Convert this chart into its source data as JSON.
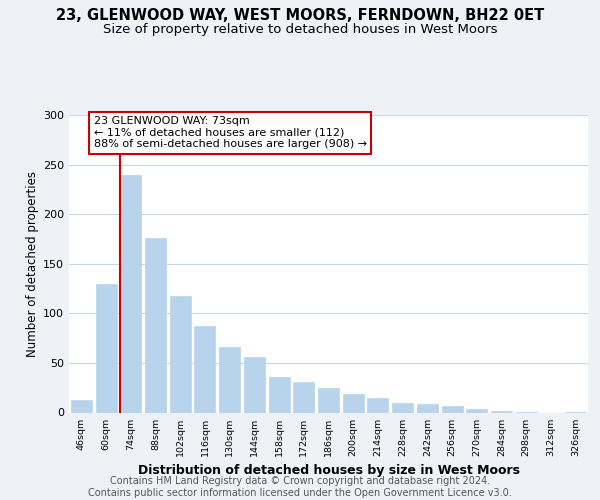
{
  "title": "23, GLENWOOD WAY, WEST MOORS, FERNDOWN, BH22 0ET",
  "subtitle": "Size of property relative to detached houses in West Moors",
  "xlabel": "Distribution of detached houses by size in West Moors",
  "ylabel": "Number of detached properties",
  "bar_labels": [
    "46sqm",
    "60sqm",
    "74sqm",
    "88sqm",
    "102sqm",
    "116sqm",
    "130sqm",
    "144sqm",
    "158sqm",
    "172sqm",
    "186sqm",
    "200sqm",
    "214sqm",
    "228sqm",
    "242sqm",
    "256sqm",
    "270sqm",
    "284sqm",
    "298sqm",
    "312sqm",
    "326sqm"
  ],
  "bar_values": [
    13,
    130,
    239,
    176,
    117,
    87,
    66,
    56,
    36,
    31,
    25,
    19,
    15,
    10,
    9,
    7,
    4,
    2,
    1,
    0,
    1
  ],
  "bar_color": "#b8d4ec",
  "highlight_color": "#cc0000",
  "annotation_title": "23 GLENWOOD WAY: 73sqm",
  "annotation_line1": "← 11% of detached houses are smaller (112)",
  "annotation_line2": "88% of semi-detached houses are larger (908) →",
  "annotation_box_color": "#ffffff",
  "annotation_box_edge": "#cc0000",
  "ylim": [
    0,
    300
  ],
  "yticks": [
    0,
    50,
    100,
    150,
    200,
    250,
    300
  ],
  "footer1": "Contains HM Land Registry data © Crown copyright and database right 2024.",
  "footer2": "Contains public sector information licensed under the Open Government Licence v3.0.",
  "background_color": "#eef2f7",
  "plot_background": "#ffffff",
  "grid_color": "#c8d8e8",
  "title_fontsize": 10.5,
  "subtitle_fontsize": 9.5,
  "xlabel_fontsize": 9,
  "ylabel_fontsize": 8.5,
  "footer_fontsize": 7,
  "red_line_bar_index": 2,
  "bar_width": 0.85
}
